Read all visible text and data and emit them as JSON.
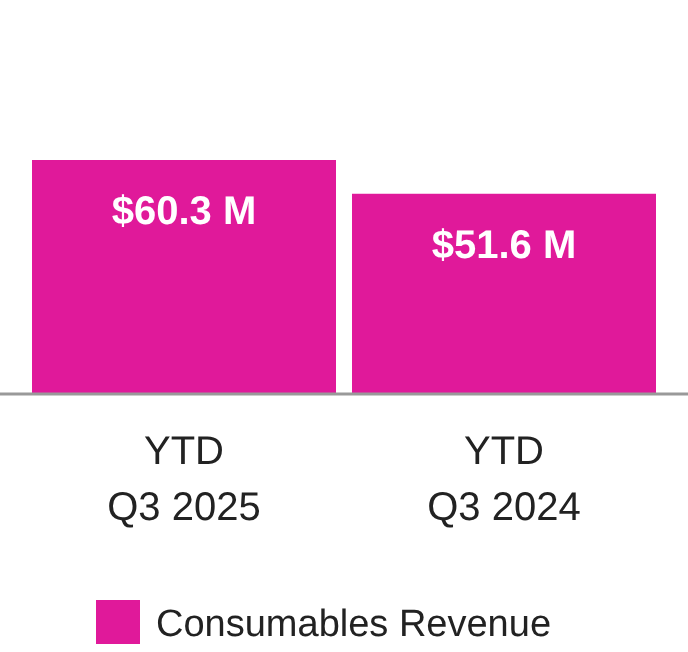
{
  "chart_data": {
    "type": "bar",
    "categories": [
      "YTD\nQ3 2025",
      "YTD\nQ3 2024"
    ],
    "series": [
      {
        "name": "Consumables Revenue",
        "color": "#e0199a",
        "values": [
          60.3,
          51.6
        ],
        "value_labels": [
          "$60.3 M",
          "$51.6 M"
        ]
      }
    ],
    "legend": "bottom"
  }
}
